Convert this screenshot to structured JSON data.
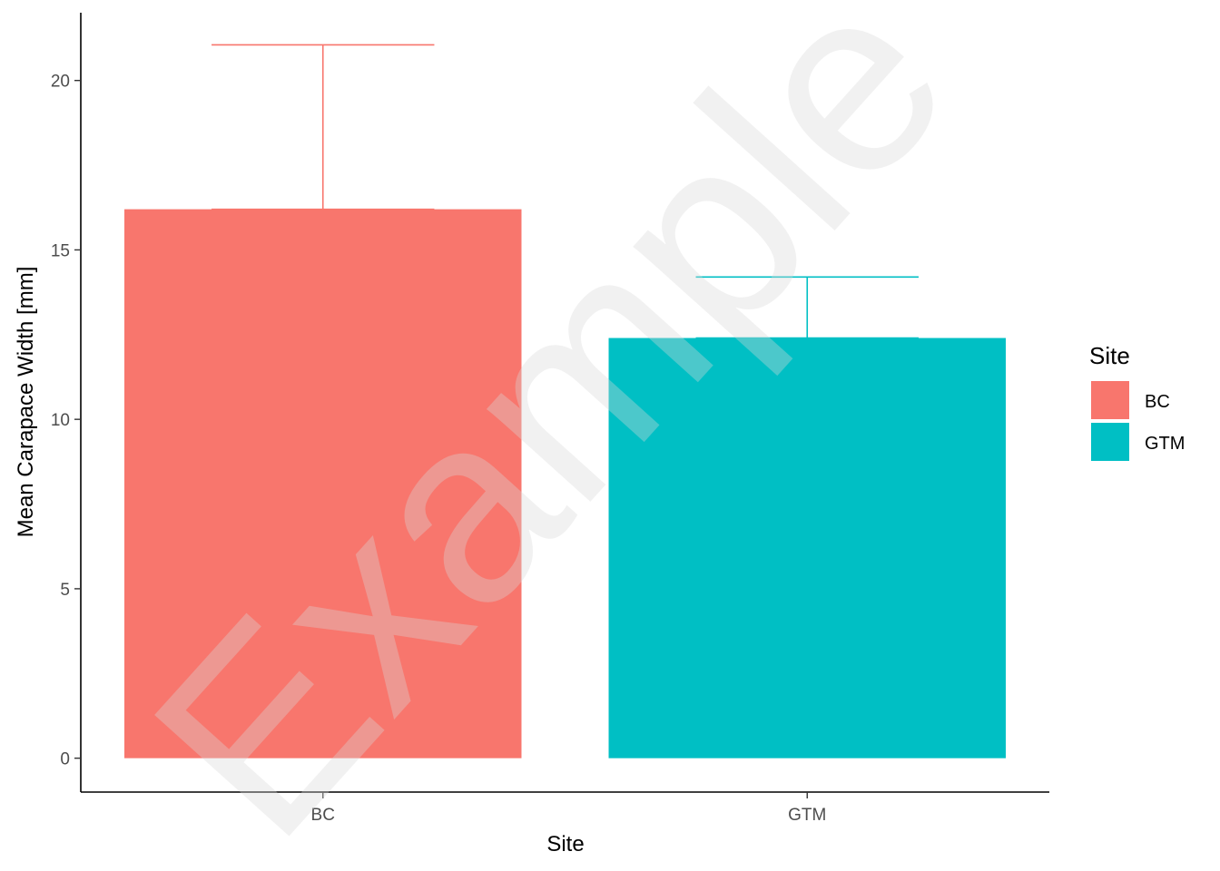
{
  "chart_data": {
    "type": "bar",
    "categories": [
      "BC",
      "GTM"
    ],
    "values": [
      16.2,
      12.4
    ],
    "error_upper": [
      21.05,
      14.2
    ],
    "xlabel": "Site",
    "ylabel": "Mean Carapace Width [mm]",
    "ylim": [
      -1.0,
      22.0
    ],
    "yticks": [
      0,
      5,
      10,
      15,
      20
    ],
    "grid": false,
    "legend": {
      "title": "Site",
      "position": "right",
      "entries": [
        {
          "label": "BC",
          "color": "#F8766D"
        },
        {
          "label": "GTM",
          "color": "#00BFC4"
        }
      ]
    },
    "colors": {
      "BC": "#F8766D",
      "GTM": "#00BFC4"
    },
    "watermark": "Example"
  }
}
